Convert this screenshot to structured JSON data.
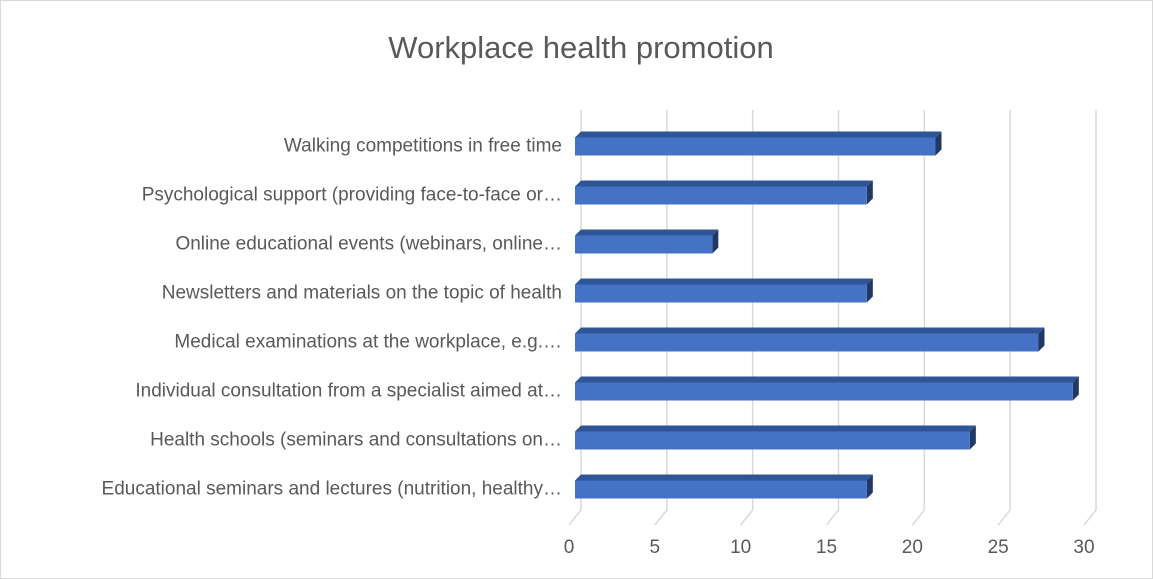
{
  "chart_data": {
    "type": "bar",
    "orientation": "horizontal",
    "title": "Workplace health promotion",
    "categories": [
      "Walking competitions in free time",
      "Psychological support (providing face-to-face or…",
      "Online educational events (webinars, online…",
      "Newsletters and materials on the topic of health",
      "Medical examinations at the workplace, e.g.…",
      "Individual consultation from a specialist aimed at…",
      "Health schools (seminars and consultations on…",
      "Educational seminars and lectures (nutrition, healthy…"
    ],
    "values": [
      21,
      17,
      8,
      17,
      27,
      29,
      23,
      17
    ],
    "color": "#4472c4",
    "xlim": [
      0,
      30
    ],
    "xticks": [
      0,
      5,
      10,
      15,
      20,
      25,
      30
    ],
    "grid": true
  }
}
